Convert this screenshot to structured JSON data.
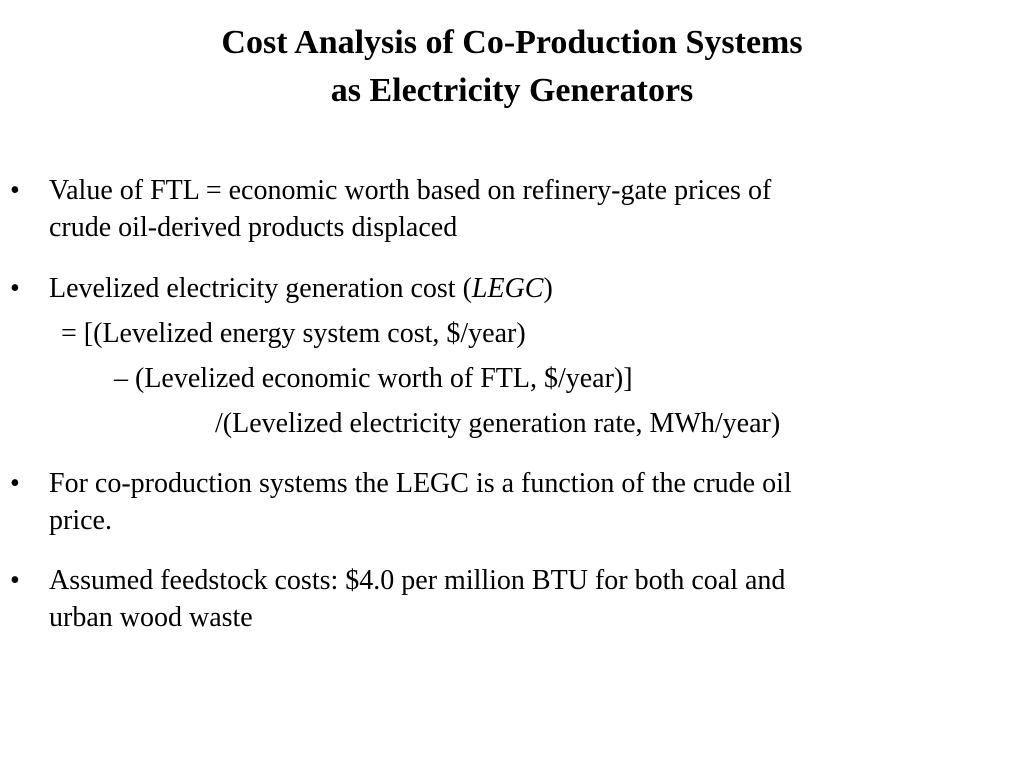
{
  "slide": {
    "title_line_1": "Cost Analysis of Co-Production Systems",
    "title_line_2": "as Electricity Generators",
    "bullet_char": "•",
    "bullets": [
      {
        "lines": [
          "Value of FTL = economic worth based on  refinery-gate prices of",
          "crude oil-derived products displaced"
        ]
      },
      {
        "line_1_prefix": "Levelized electricity generation cost (",
        "line_1_italic": "LEGC",
        "line_1_suffix": ")",
        "formula_lines": [
          "= [(Levelized energy system cost, $/year)",
          "– (Levelized economic worth of FTL, $/year)]",
          "/(Levelized electricity generation rate, MWh/year)"
        ]
      },
      {
        "lines": [
          "For co-production systems the LEGC is a function of the crude oil",
          "price."
        ]
      },
      {
        "lines": [
          "Assumed feedstock costs: $4.0 per million BTU for both coal and",
          "urban wood waste"
        ]
      }
    ]
  }
}
